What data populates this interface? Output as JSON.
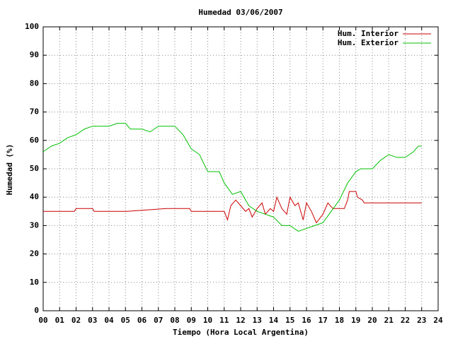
{
  "chart_data": {
    "type": "line",
    "title": "Humedad 03/06/2007",
    "xlabel": "Tiempo (Hora Local Argentina)",
    "ylabel": "Humedad (%)",
    "xlim": [
      0,
      24
    ],
    "ylim": [
      0,
      100
    ],
    "xticks": [
      {
        "value": 0,
        "label": "00"
      },
      {
        "value": 1,
        "label": "01"
      },
      {
        "value": 2,
        "label": "02"
      },
      {
        "value": 3,
        "label": "03"
      },
      {
        "value": 4,
        "label": "04"
      },
      {
        "value": 5,
        "label": "05"
      },
      {
        "value": 6,
        "label": "06"
      },
      {
        "value": 7,
        "label": "07"
      },
      {
        "value": 8,
        "label": "08"
      },
      {
        "value": 9,
        "label": "09"
      },
      10,
      11,
      12,
      13,
      14,
      15,
      16,
      17,
      18,
      19,
      20,
      21,
      22,
      23,
      24
    ],
    "yticks": [
      0,
      10,
      20,
      30,
      40,
      50,
      60,
      70,
      80,
      90,
      100
    ],
    "grid": true,
    "legend": "top-right",
    "series": [
      {
        "name": "Hum. Interior",
        "color": "#cc0000",
        "x": [
          0,
          1,
          1.9,
          2,
          3,
          3.1,
          5,
          5.1,
          7.5,
          8,
          8.9,
          9,
          10.5,
          11,
          11.2,
          11.4,
          11.7,
          12,
          12.3,
          12.5,
          12.7,
          13,
          13.3,
          13.5,
          13.8,
          14,
          14.2,
          14.5,
          14.8,
          15,
          15.3,
          15.5,
          15.8,
          16,
          16.3,
          16.6,
          17,
          17.3,
          17.6,
          18,
          18.3,
          18.5,
          18.6,
          19,
          19.1,
          19.4,
          19.5,
          23
        ],
        "values": [
          35,
          35,
          35,
          36,
          36,
          35,
          35,
          35,
          36,
          36,
          36,
          35,
          35,
          35,
          32,
          37,
          39,
          37,
          35,
          36,
          33,
          36,
          38,
          34,
          36,
          35,
          40,
          36,
          34,
          40,
          37,
          38,
          32,
          38,
          35,
          31,
          34,
          38,
          36,
          36,
          36,
          39,
          42,
          42,
          40,
          39,
          38,
          38
        ]
      },
      {
        "name": "Hum. Exterior",
        "color": "#00c000",
        "x": [
          0,
          0.5,
          1,
          1.5,
          2,
          2.5,
          3,
          4,
          4.5,
          5,
          5.3,
          6,
          6.5,
          7,
          8,
          8.5,
          9,
          9.5,
          10,
          10.7,
          11,
          11.5,
          12,
          12.5,
          13,
          13.5,
          14,
          14.5,
          15,
          15.5,
          16,
          16.5,
          17,
          17.5,
          18,
          18.5,
          19,
          19.3,
          19.5,
          20,
          20.5,
          21,
          21.5,
          22,
          22.5,
          22.8,
          23
        ],
        "values": [
          56,
          58,
          59,
          61,
          62,
          64,
          65,
          65,
          66,
          66,
          64,
          64,
          63,
          65,
          65,
          62,
          57,
          55,
          49,
          49,
          45,
          41,
          42,
          37,
          35,
          34,
          33,
          30,
          30,
          28,
          29,
          30,
          31,
          35,
          39,
          45,
          49,
          50,
          50,
          50,
          53,
          55,
          54,
          54,
          56,
          58,
          58
        ]
      }
    ]
  }
}
